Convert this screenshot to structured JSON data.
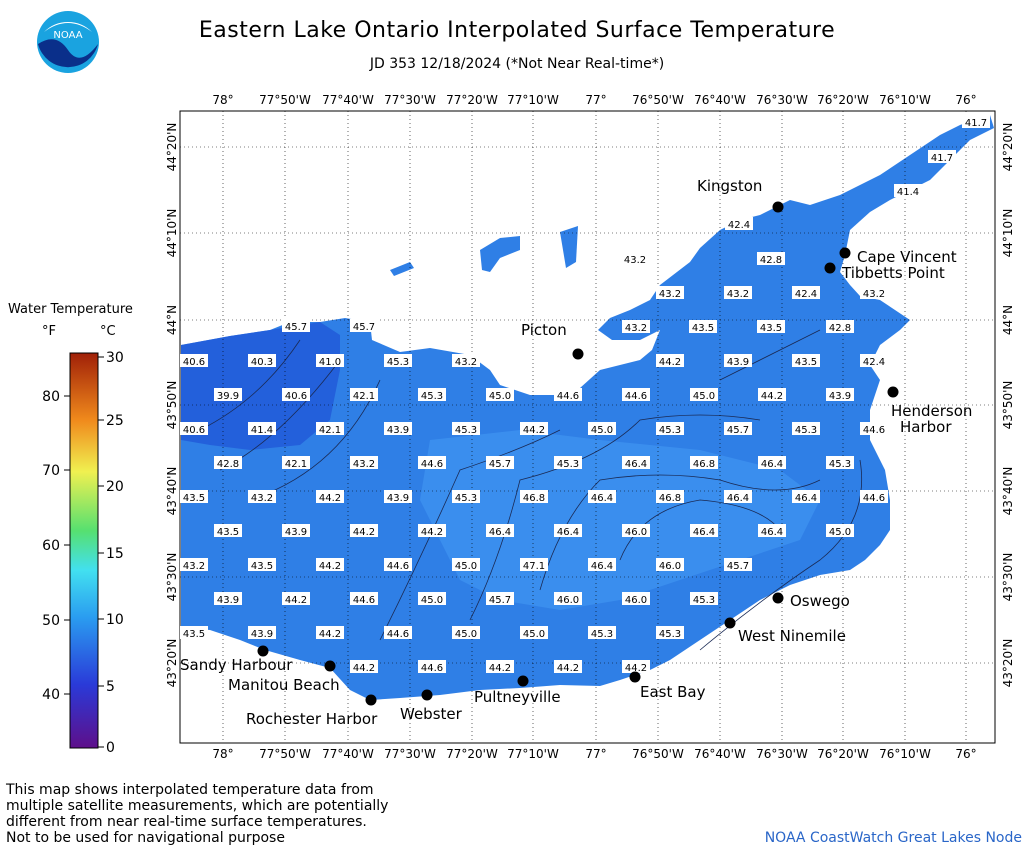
{
  "title": "Eastern Lake Ontario Interpolated Surface Temperature",
  "subtitle": "JD 353 12/18/2024 (*Not Near Real-time*)",
  "logo_text": "NOAA",
  "legend": {
    "title": "Water Temperature",
    "unit_f": "°F",
    "unit_c": "°C",
    "f_ticks": [
      "80",
      "70",
      "60",
      "50",
      "40"
    ],
    "c_ticks": [
      "30",
      "25",
      "20",
      "15",
      "10",
      "5",
      "0"
    ],
    "colors": [
      "#5e0f8a",
      "#2a3ad8",
      "#2a9cf0",
      "#42e0f0",
      "#56e070",
      "#f0f050",
      "#f08a1c",
      "#a02008"
    ]
  },
  "lon_labels": [
    "78°",
    "77°50'W",
    "77°40'W",
    "77°30'W",
    "77°20'W",
    "77°10'W",
    "77°",
    "76°50'W",
    "76°40'W",
    "76°30'W",
    "76°20'W",
    "76°10'W",
    "76°"
  ],
  "lat_labels": [
    "44°20'N",
    "44°10'N",
    "44°N",
    "43°50'N",
    "43°40'N",
    "43°30'N",
    "43°20'N"
  ],
  "places": [
    "Kingston",
    "Cape Vincent",
    "Tibbetts Point",
    "Picton",
    "Henderson",
    "Harbor",
    "Oswego",
    "West Ninemile",
    "Sandy Harbour",
    "Manitou Beach",
    "Rochester Harbor",
    "Webster",
    "Pultneyville",
    "East Bay"
  ],
  "temperatures": [
    "41.7",
    "41.7",
    "41.4",
    "42.4",
    "43.2",
    "42.8",
    "43.2",
    "43.2",
    "42.4",
    "43.2",
    "45.7",
    "45.7",
    "43.2",
    "43.5",
    "43.5",
    "42.8",
    "40.6",
    "40.3",
    "41.0",
    "45.3",
    "43.2",
    "44.2",
    "43.9",
    "43.5",
    "42.4",
    "39.9",
    "40.6",
    "42.1",
    "45.3",
    "45.0",
    "44.6",
    "44.6",
    "45.0",
    "44.2",
    "43.9",
    "40.6",
    "41.4",
    "42.1",
    "43.9",
    "45.3",
    "44.2",
    "45.0",
    "45.3",
    "45.7",
    "45.3",
    "44.6",
    "42.8",
    "42.1",
    "43.2",
    "44.6",
    "45.7",
    "45.3",
    "46.4",
    "46.8",
    "46.4",
    "45.3",
    "43.5",
    "43.2",
    "44.2",
    "43.9",
    "45.3",
    "46.8",
    "46.4",
    "46.8",
    "46.4",
    "46.4",
    "44.6",
    "43.5",
    "43.9",
    "44.2",
    "44.2",
    "46.4",
    "46.4",
    "46.0",
    "46.4",
    "46.4",
    "45.0",
    "43.2",
    "43.5",
    "44.2",
    "44.6",
    "45.0",
    "47.1",
    "46.4",
    "46.0",
    "45.7",
    "43.9",
    "44.2",
    "44.6",
    "45.0",
    "45.7",
    "46.0",
    "46.0",
    "45.3",
    "43.5",
    "43.9",
    "44.2",
    "44.6",
    "45.0",
    "45.0",
    "45.3",
    "45.3",
    "44.2",
    "44.6",
    "44.2",
    "44.2",
    "44.2"
  ],
  "note": "This map shows interpolated temperature data from\nmultiple satellite measurements, which are potentially\ndifferent from near real-time surface temperatures.",
  "nav_note": "Not to be used for navigational purpose",
  "credit": "NOAA CoastWatch Great Lakes Node"
}
